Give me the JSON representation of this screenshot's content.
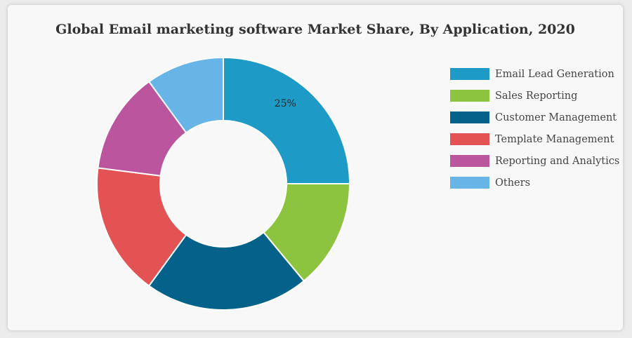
{
  "chart_data": {
    "type": "pie",
    "title": "Global Email marketing software Market Share, By Application, 2020",
    "donut": true,
    "series": [
      {
        "name": "Email Lead Generation",
        "value": 25,
        "color": "#1d9bc6",
        "label": "25%"
      },
      {
        "name": "Sales Reporting",
        "value": 14,
        "color": "#8cc43f",
        "label": ""
      },
      {
        "name": "Customer Management",
        "value": 21,
        "color": "#03618a",
        "label": ""
      },
      {
        "name": "Template Management",
        "value": 17,
        "color": "#e35353",
        "label": ""
      },
      {
        "name": "Reporting and Analytics",
        "value": 13,
        "color": "#bb569e",
        "label": ""
      },
      {
        "name": "Others",
        "value": 10,
        "color": "#66b5e6",
        "label": ""
      }
    ],
    "legend_position": "right"
  }
}
